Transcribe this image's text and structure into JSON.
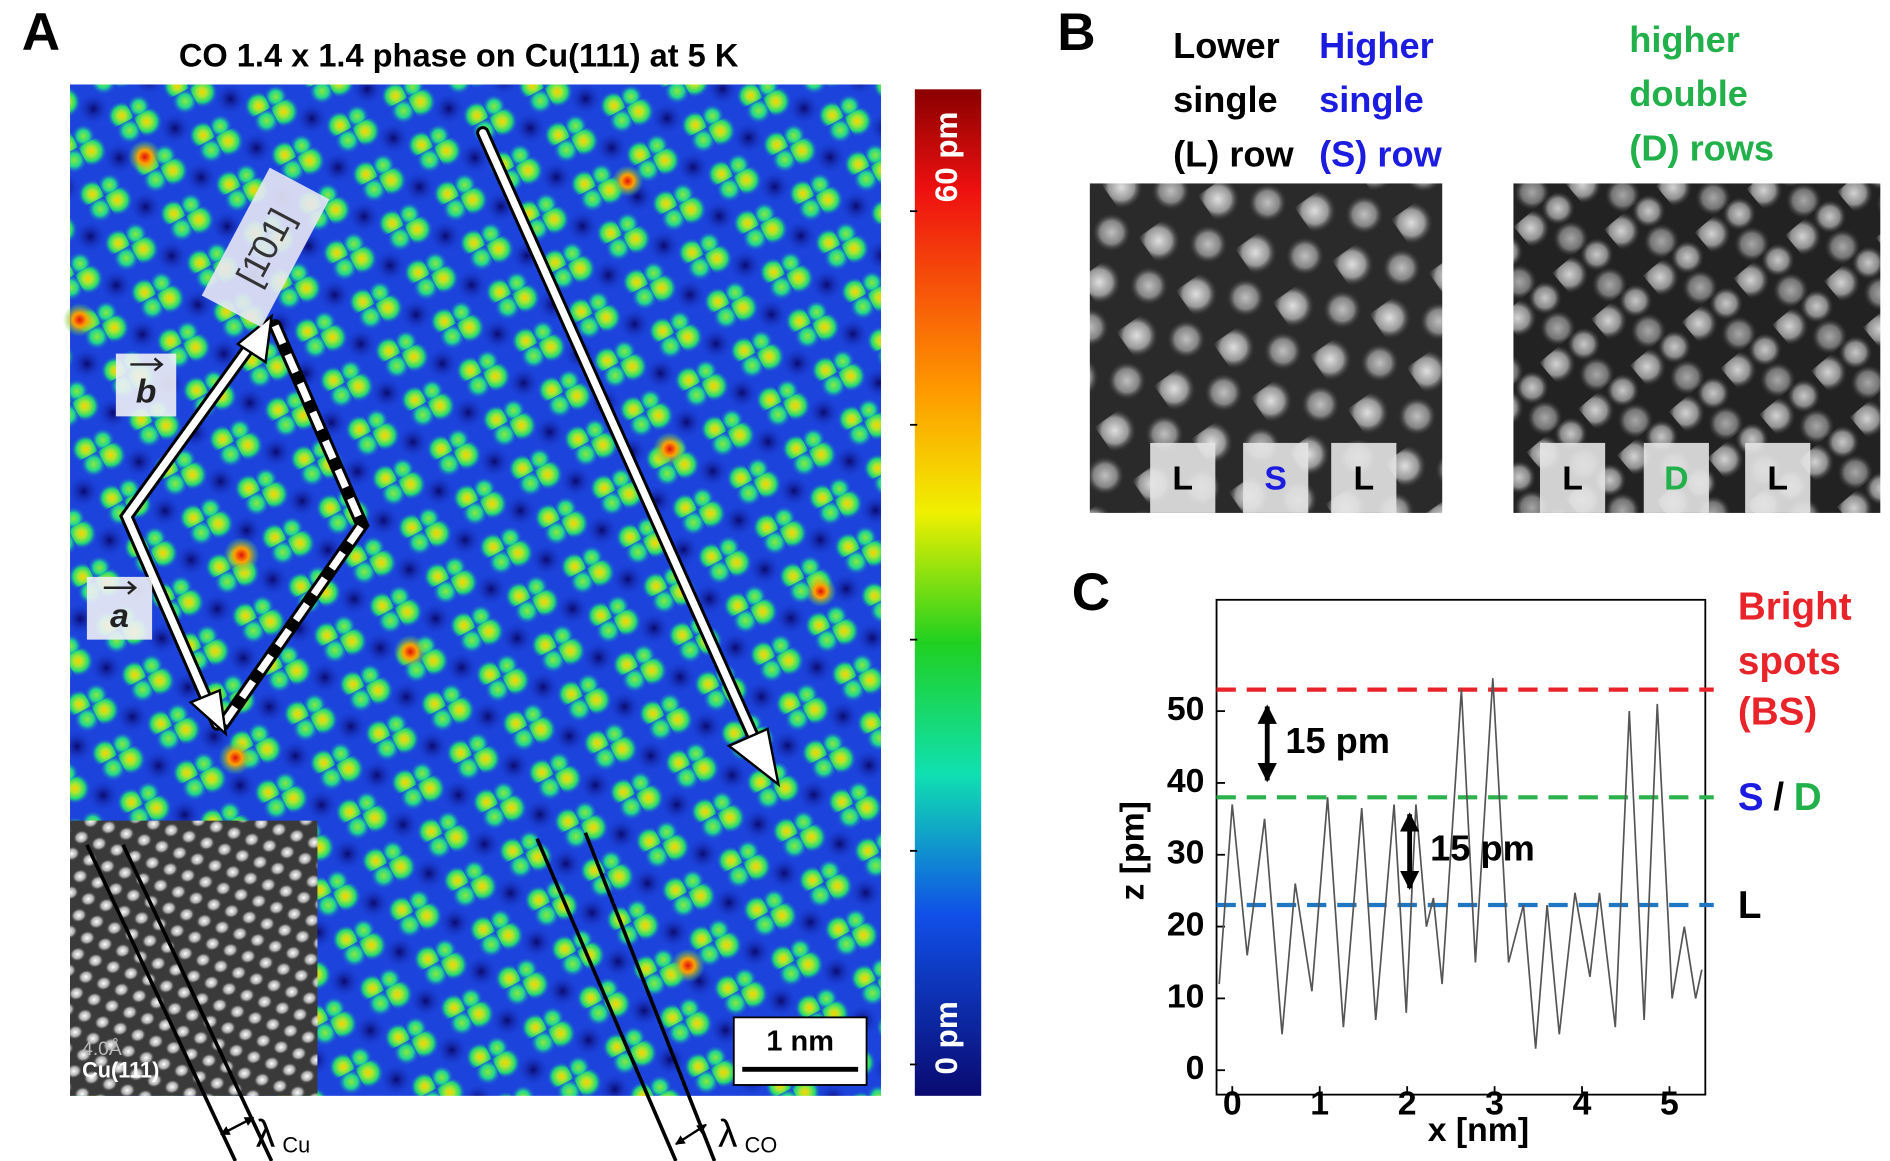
{
  "panel_labels": [
    "A",
    "B",
    "C"
  ],
  "panel_a": {
    "title": "CO 1.4 x 1.4 phase on Cu(111) at 5 K",
    "direction_label": "[1̄01]",
    "vector_labels": [
      "b",
      "a"
    ],
    "colorbar_labels": [
      "60 pm",
      "0 pm"
    ],
    "scale_bar": "1 nm",
    "inset_labels": [
      "4.0Å",
      "Cu(111)"
    ],
    "wavelength_labels": [
      {
        "symbol": "λ",
        "subscript": "Cu"
      },
      {
        "symbol": "λ",
        "subscript": "CO"
      }
    ]
  },
  "panel_b": {
    "headers": [
      {
        "lines": [
          "Lower",
          "single",
          "(L) row"
        ],
        "color": "#000000"
      },
      {
        "lines": [
          "Higher",
          "single",
          "(S) row"
        ],
        "color": "#1c1ce0"
      },
      {
        "lines": [
          "higher",
          "double",
          "(D) rows"
        ],
        "color": "#22b04a"
      }
    ],
    "left_markers": [
      {
        "text": "L",
        "color": "#000000"
      },
      {
        "text": "S",
        "color": "#1c1ce0"
      },
      {
        "text": "L",
        "color": "#000000"
      }
    ],
    "right_markers": [
      {
        "text": "L",
        "color": "#000000"
      },
      {
        "text": "D",
        "color": "#22b04a"
      },
      {
        "text": "L",
        "color": "#000000"
      }
    ]
  },
  "chart_data": {
    "type": "line",
    "xlabel": "x [nm]",
    "ylabel": "z [pm]",
    "x": [
      -0.15,
      0.0,
      0.17,
      0.37,
      0.57,
      0.72,
      0.91,
      1.09,
      1.27,
      1.48,
      1.64,
      1.85,
      1.99,
      2.1,
      2.22,
      2.3,
      2.4,
      2.62,
      2.78,
      2.98,
      3.16,
      3.33,
      3.47,
      3.6,
      3.74,
      3.92,
      4.09,
      4.2,
      4.38,
      4.54,
      4.71,
      4.86,
      5.03,
      5.17,
      5.3,
      5.37
    ],
    "values": [
      12,
      37,
      16,
      35,
      5,
      26,
      11,
      38,
      6,
      36.5,
      7,
      37,
      8,
      37,
      20,
      24,
      12,
      53,
      15,
      54.6,
      15,
      23,
      3,
      23,
      5,
      24.7,
      13,
      24.7,
      6,
      50,
      7,
      51,
      10,
      20,
      10,
      14
    ],
    "color": "#555555",
    "xlim": [
      -0.18,
      5.41
    ],
    "ylim": [
      -3.4,
      65.5
    ],
    "xticks": [
      0,
      1,
      2,
      3,
      4,
      5
    ],
    "yticks": [
      0,
      10,
      20,
      30,
      40,
      50
    ],
    "reference_lines": [
      {
        "value": 53,
        "color": "#e8242a"
      },
      {
        "value": 38,
        "color": "#2bb24c"
      },
      {
        "value": 23,
        "color": "#1f77c4"
      }
    ],
    "annotations": [
      "15 pm",
      "15 pm"
    ],
    "level_labels": [
      {
        "lines": [
          "Bright",
          "spots",
          "(BS)"
        ],
        "color": "#e8242a"
      },
      {
        "parts": [
          {
            "text": "S",
            "color": "#1c1ce0"
          },
          {
            "text": "/",
            "color": "#000000"
          },
          {
            "text": "D",
            "color": "#22b04a"
          }
        ]
      },
      {
        "lines": [
          "L"
        ],
        "color": "#000000"
      }
    ]
  }
}
